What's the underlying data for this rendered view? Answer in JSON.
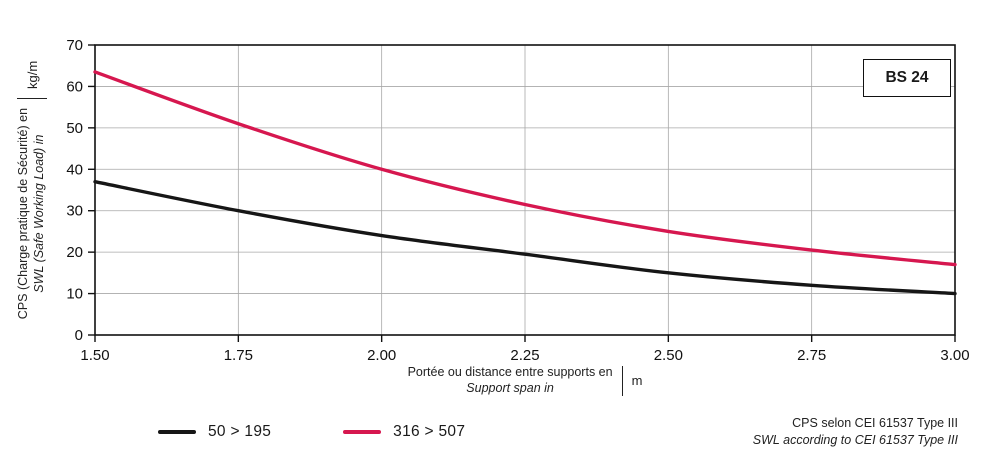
{
  "chart_data": {
    "type": "line",
    "title": "",
    "xlabel_line1": "Portée ou distance entre supports en",
    "xlabel_line2": "Support span in",
    "xlabel_unit": "m",
    "ylabel_line1": "CPS (Charge pratique de Sécurité) en",
    "ylabel_line2": "SWL (Safe Working Load) in",
    "ylabel_unit": "kg/m",
    "xlim": [
      1.5,
      3.0
    ],
    "ylim": [
      0,
      70
    ],
    "grid": true,
    "x_tick_values": [
      1.5,
      1.75,
      2.0,
      2.25,
      2.5,
      2.75,
      3.0
    ],
    "x_tick_labels": [
      "1,50",
      "1,75",
      "2,00",
      "2,25",
      "2,50",
      "2,75",
      "3,00"
    ],
    "y_tick_values": [
      0,
      10,
      20,
      30,
      40,
      50,
      60,
      70
    ],
    "y_tick_labels": [
      "0",
      "10",
      "20",
      "30",
      "40",
      "50",
      "60",
      "70"
    ],
    "series": [
      {
        "name": "50>195",
        "color": "#161616",
        "x": [
          1.5,
          1.75,
          2.0,
          2.25,
          2.5,
          2.75,
          3.0
        ],
        "values": [
          37,
          30,
          24,
          19.5,
          15,
          12,
          10
        ]
      },
      {
        "name": "316>507",
        "color": "#d6174f",
        "x": [
          1.5,
          1.75,
          2.0,
          2.25,
          2.5,
          2.75,
          3.0
        ],
        "values": [
          63.5,
          51,
          40,
          31.5,
          25,
          20.5,
          17
        ]
      }
    ],
    "legend_position": "bottom-left"
  },
  "badge": {
    "label": "BS 24"
  },
  "legend": [
    {
      "label": "50 > 195",
      "color": "#161616"
    },
    {
      "label": "316 > 507",
      "color": "#d6174f"
    }
  ],
  "footnote": {
    "line1": "CPS selon CEI 61537 Type III",
    "line2": "SWL according to CEI 61537 Type III"
  }
}
